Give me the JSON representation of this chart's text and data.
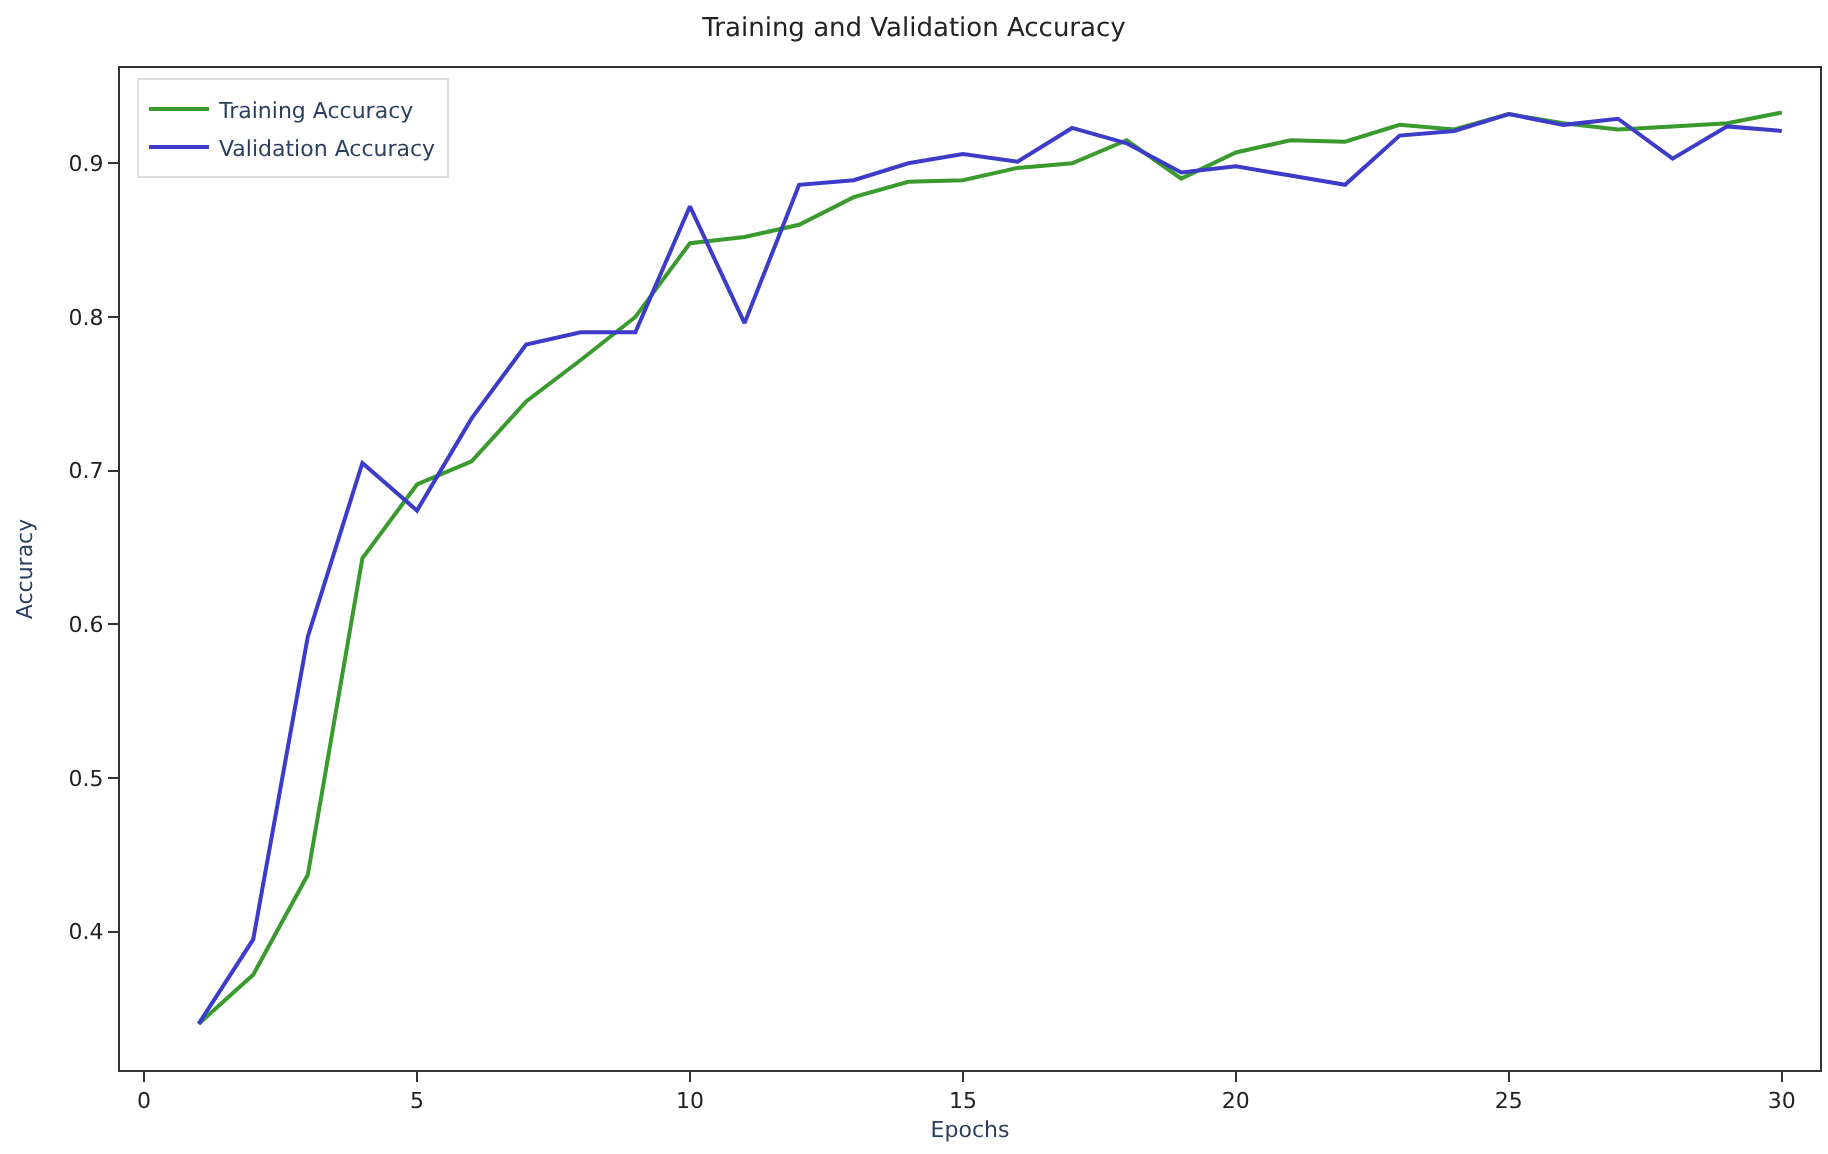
{
  "chart_data": {
    "type": "line",
    "title": "Training and Validation Accuracy",
    "xlabel": "Epochs",
    "ylabel": "Accuracy",
    "x": [
      1,
      2,
      3,
      4,
      5,
      6,
      7,
      8,
      9,
      10,
      11,
      12,
      13,
      14,
      15,
      16,
      17,
      18,
      19,
      20,
      21,
      22,
      23,
      24,
      25,
      26,
      27,
      28,
      29,
      30
    ],
    "series": [
      {
        "name": "Training Accuracy",
        "color": "#3a9a2e",
        "values": [
          0.34,
          0.372,
          0.437,
          0.643,
          0.691,
          0.706,
          0.745,
          0.772,
          0.8,
          0.848,
          0.852,
          0.86,
          0.878,
          0.888,
          0.889,
          0.897,
          0.9,
          0.915,
          0.89,
          0.907,
          0.915,
          0.914,
          0.925,
          0.922,
          0.932,
          0.926,
          0.922,
          0.924,
          0.926,
          0.933
        ]
      },
      {
        "name": "Validation Accuracy",
        "color": "#3c3cc8",
        "values": [
          0.34,
          0.395,
          0.592,
          0.705,
          0.674,
          0.734,
          0.782,
          0.79,
          0.79,
          0.872,
          0.796,
          0.886,
          0.889,
          0.9,
          0.906,
          0.901,
          0.923,
          0.913,
          0.894,
          0.898,
          0.892,
          0.886,
          0.918,
          0.921,
          0.932,
          0.925,
          0.929,
          0.903,
          0.924,
          0.921
        ]
      }
    ],
    "xlim": [
      -0.44,
      30.7
    ],
    "xticks": [
      0,
      5,
      10,
      15,
      20,
      25,
      30
    ],
    "ylim": [
      0.31,
      0.962
    ],
    "yticks": [
      0.4,
      0.5,
      0.6,
      0.7,
      0.8,
      0.9
    ],
    "legend": "top left",
    "marker": "none",
    "line_style": "solid"
  }
}
